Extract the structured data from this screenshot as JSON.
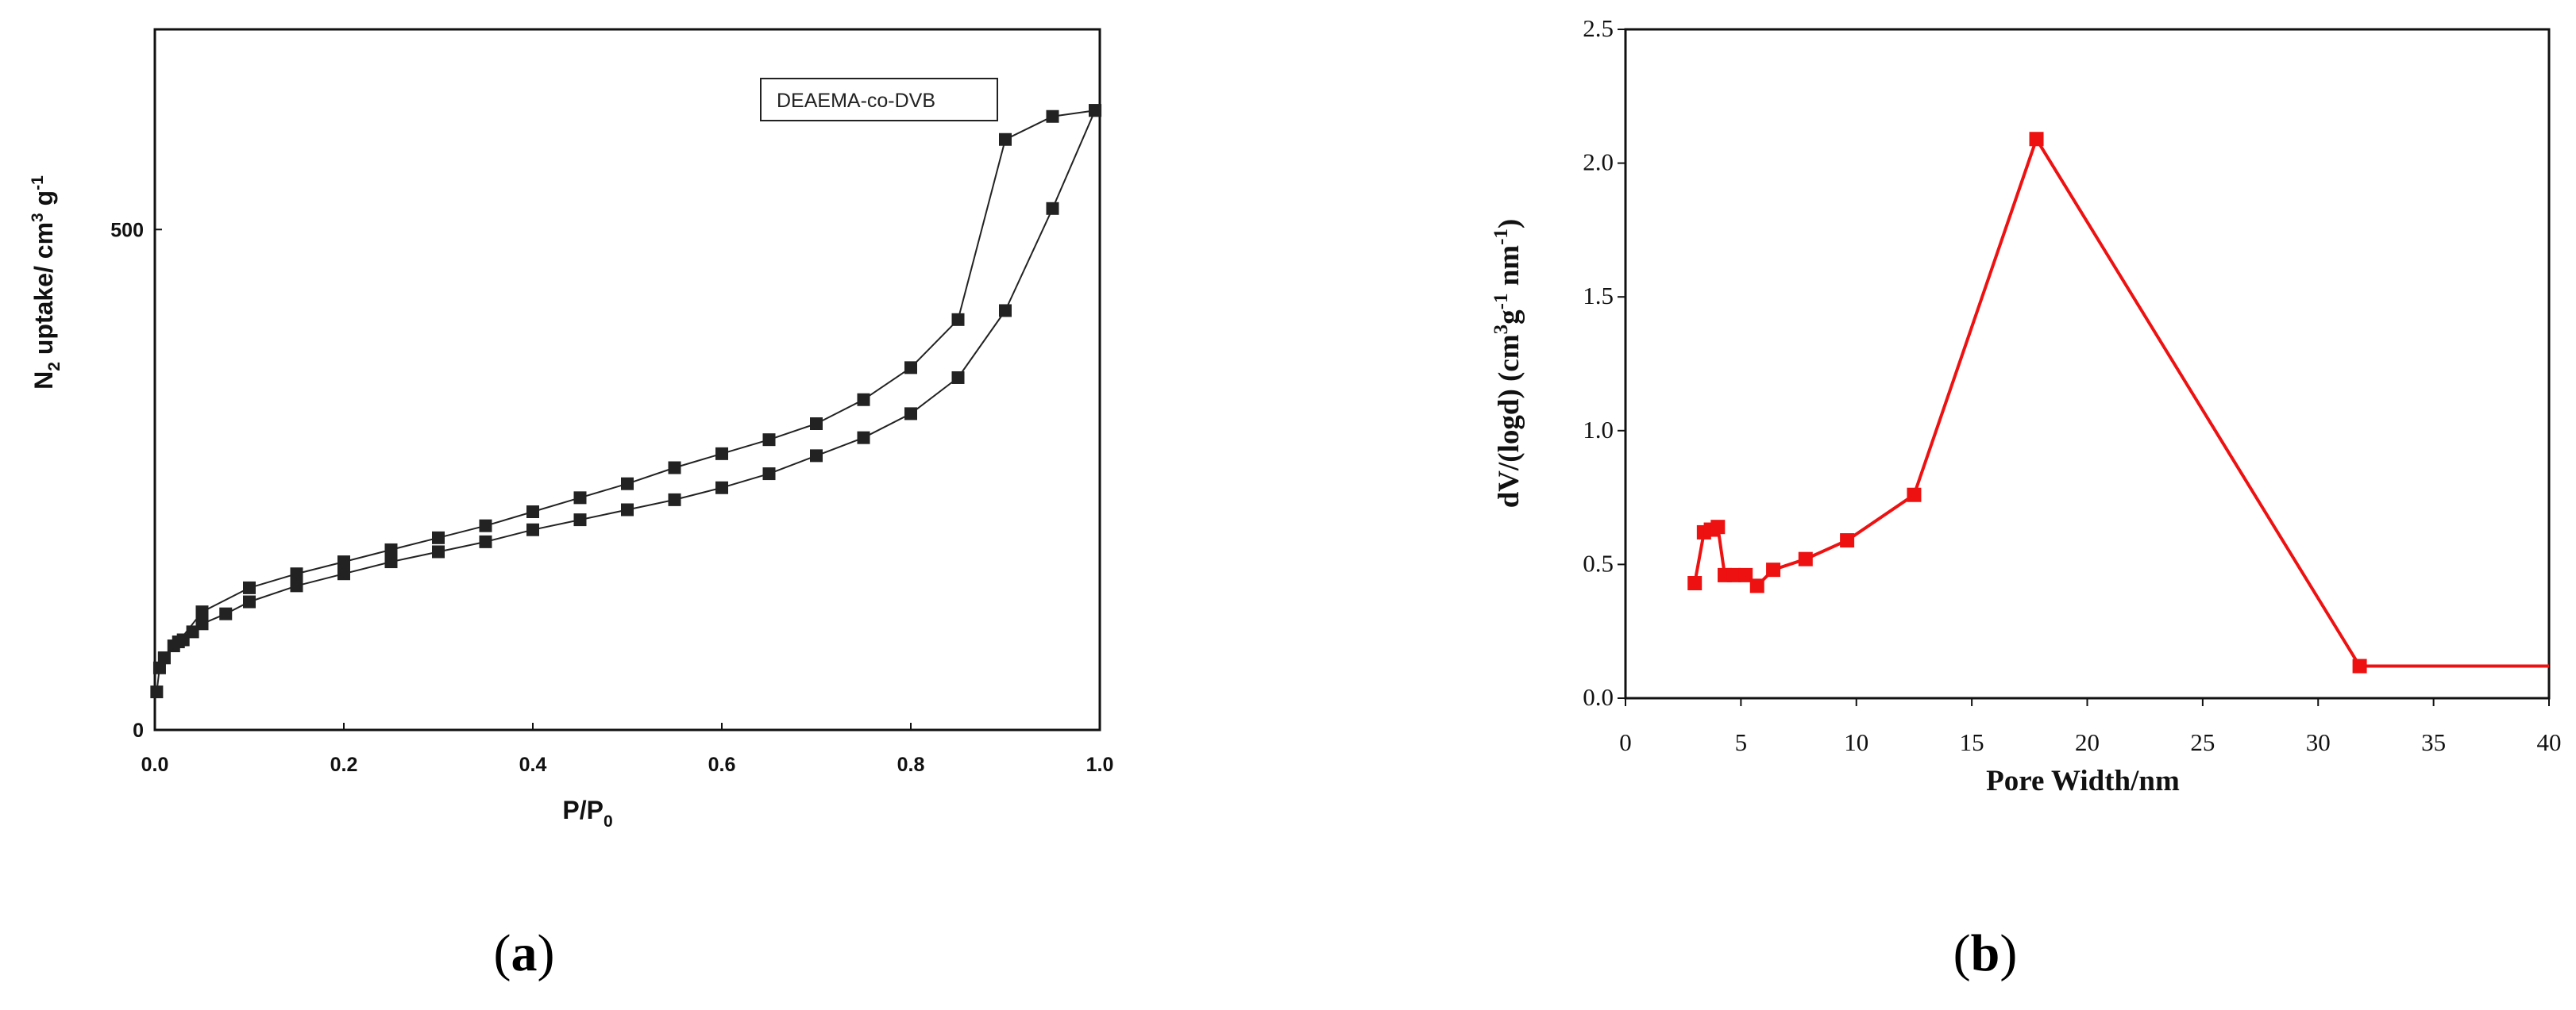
{
  "chart_data": [
    {
      "type": "line",
      "panel_label": [
        "(",
        "a",
        ")"
      ],
      "xlabel": "P/P",
      "xlabel_sub": "0",
      "ylabel": [
        "N",
        "2",
        " uptake/ cm",
        "3",
        " g",
        "-1"
      ],
      "xlim": [
        0,
        1.0
      ],
      "ylim": [
        0,
        700
      ],
      "x_ticks": [
        0.0,
        0.2,
        0.4,
        0.6,
        0.8,
        1.0
      ],
      "x_tick_labels": [
        "0.0",
        "0.2",
        "0.4",
        "0.6",
        "0.8",
        "1.0"
      ],
      "y_ticks": [
        0,
        500
      ],
      "y_tick_labels": [
        "0",
        "500"
      ],
      "legend": {
        "label": "DEAEMA-co-DVB",
        "placement": "top-right"
      },
      "color": "#222222",
      "series": [
        {
          "x": [
            0.002,
            0.005,
            0.01,
            0.02,
            0.03,
            0.04,
            0.05,
            0.075,
            0.1,
            0.15,
            0.2,
            0.25,
            0.3,
            0.35,
            0.4,
            0.45,
            0.5,
            0.55,
            0.6,
            0.65,
            0.7,
            0.75,
            0.8,
            0.85,
            0.9,
            0.95,
            0.995
          ],
          "y": [
            38,
            62,
            72,
            84,
            90,
            98,
            106,
            116,
            128,
            144,
            156,
            168,
            178,
            188,
            200,
            210,
            220,
            230,
            242,
            256,
            274,
            292,
            316,
            352,
            419,
            521,
            619
          ]
        },
        {
          "x": [
            0.995,
            0.95,
            0.9,
            0.85,
            0.8,
            0.75,
            0.7,
            0.65,
            0.6,
            0.55,
            0.5,
            0.45,
            0.4,
            0.35,
            0.3,
            0.25,
            0.2,
            0.15,
            0.1,
            0.05,
            0.025,
            0.01
          ],
          "y": [
            619,
            613,
            590,
            410,
            362,
            330,
            306,
            290,
            276,
            262,
            246,
            232,
            218,
            204,
            192,
            180,
            168,
            156,
            142,
            118,
            88,
            72
          ]
        }
      ]
    },
    {
      "type": "line",
      "panel_label": [
        "(",
        "b",
        ")"
      ],
      "xlabel": "Pore Width/nm",
      "ylabel": [
        "dV/(logd) (cm",
        "3",
        "g",
        "-1",
        " nm",
        "-1",
        ")"
      ],
      "xlim": [
        0,
        40
      ],
      "ylim": [
        0,
        2.5
      ],
      "x_ticks": [
        0,
        5,
        10,
        15,
        20,
        25,
        30,
        35,
        40
      ],
      "x_tick_labels": [
        "0",
        "5",
        "10",
        "15",
        "20",
        "25",
        "30",
        "35",
        "40"
      ],
      "y_ticks": [
        0.0,
        0.5,
        1.0,
        1.5,
        2.0,
        2.5
      ],
      "y_tick_labels": [
        "0.0",
        "0.5",
        "1.0",
        "1.5",
        "2.0",
        "2.5"
      ],
      "color": "#ee1111",
      "series": [
        {
          "x": [
            3.0,
            3.4,
            3.7,
            4.0,
            4.3,
            4.7,
            5.2,
            5.7,
            6.4,
            7.8,
            9.6,
            12.5,
            17.8,
            31.8,
            40.0
          ],
          "y": [
            0.43,
            0.62,
            0.63,
            0.64,
            0.46,
            0.46,
            0.46,
            0.42,
            0.48,
            0.52,
            0.59,
            0.76,
            2.09,
            0.12,
            0.12
          ],
          "markers": [
            true,
            true,
            true,
            true,
            true,
            true,
            true,
            true,
            true,
            true,
            true,
            true,
            true,
            true,
            false
          ]
        }
      ]
    }
  ]
}
